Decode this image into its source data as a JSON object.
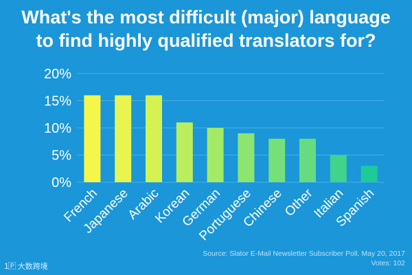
{
  "title_lines": [
    "What's the most difficult (major) language",
    "to find highly qualified translators for?"
  ],
  "source": {
    "line1": "Source: Slator E-Mail Newsletter Subscriber Poll. May 20, 2017",
    "line2": "Votes: 102"
  },
  "logo": {
    "mark": "1🄿",
    "text": "大数跨境"
  },
  "colors": {
    "background": "#1a96d9",
    "grid": "#4bb0e6",
    "axis_text": "#ffffff"
  },
  "chart_data": {
    "type": "bar",
    "title": "",
    "xlabel": "",
    "ylabel": "",
    "categories": [
      "French",
      "Japanese",
      "Arabic",
      "Korean",
      "German",
      "Portuguese",
      "Chinese",
      "Other",
      "Italian",
      "Spanish"
    ],
    "values": [
      16,
      16,
      16,
      11,
      10,
      9,
      8,
      8,
      5,
      3
    ],
    "bar_colors": [
      "#f5f54a",
      "#e8f54e",
      "#d5f252",
      "#baee5c",
      "#a3ea66",
      "#8de570",
      "#75df7a",
      "#66dc80",
      "#3fd38c",
      "#1ecb98"
    ],
    "ylim": [
      0,
      20
    ],
    "yticks": [
      0,
      5,
      10,
      15,
      20
    ],
    "ytick_labels": [
      "0%",
      "5%",
      "10%",
      "15%",
      "20%"
    ],
    "grid": true
  }
}
